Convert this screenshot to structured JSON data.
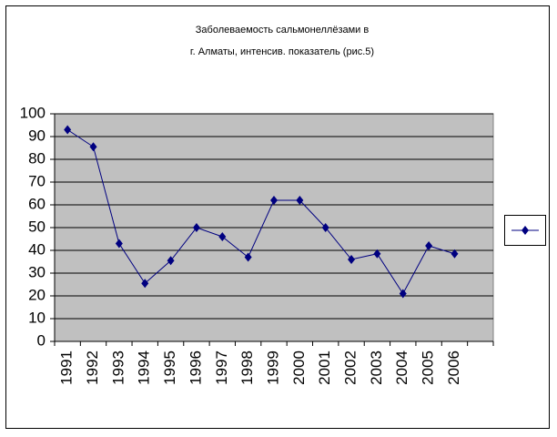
{
  "chart_data": {
    "type": "line",
    "title": [
      "Заболеваемость сальмонеллёзами в",
      "г. Алматы, интенсив. показатель (рис.5)"
    ],
    "categories": [
      "1991",
      "1992",
      "1993",
      "1994",
      "1995",
      "1996",
      "1997",
      "1998",
      "1999",
      "2000",
      "2001",
      "2002",
      "2003",
      "2004",
      "2005",
      "2006",
      null
    ],
    "series": [
      {
        "color": "#000080",
        "values": [
          93,
          85.5,
          43,
          25.5,
          35.5,
          50,
          46,
          37,
          62,
          62,
          50,
          36,
          38.5,
          21,
          42,
          38.5,
          null
        ]
      }
    ],
    "ylim": [
      0,
      100
    ],
    "yticks": [
      0,
      10,
      20,
      30,
      40,
      50,
      60,
      70,
      80,
      90,
      100
    ],
    "grid": true,
    "legend": "right"
  }
}
